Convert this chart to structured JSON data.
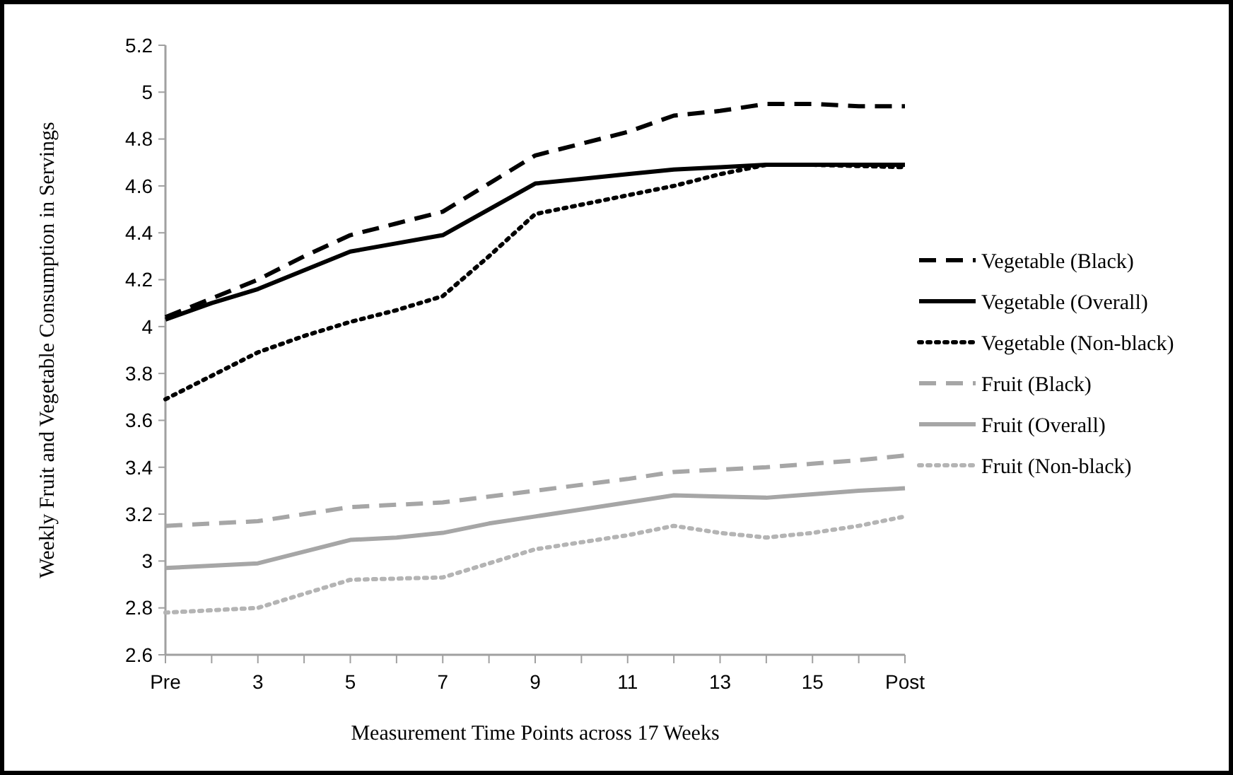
{
  "chart_data": {
    "type": "line",
    "xlabel": "Measurement Time Points across 17 Weeks",
    "ylabel": "Weekly Fruit and Vegetable Consumption in Servings",
    "categories": [
      "Pre",
      null,
      "3",
      null,
      "5",
      null,
      "7",
      null,
      "9",
      null,
      "11",
      null,
      "13",
      null,
      "15",
      null,
      "Post"
    ],
    "ylim": [
      2.6,
      5.2
    ],
    "yticks": [
      {
        "value": 2.6,
        "label": "2.6"
      },
      {
        "value": 2.8,
        "label": "2.8"
      },
      {
        "value": 3,
        "label": "3"
      },
      {
        "value": 3.2,
        "label": "3.2"
      },
      {
        "value": 3.4,
        "label": "3.4"
      },
      {
        "value": 3.6,
        "label": "3.6"
      },
      {
        "value": 3.8,
        "label": "3.8"
      },
      {
        "value": 4,
        "label": "4"
      },
      {
        "value": 4.2,
        "label": "4.2"
      },
      {
        "value": 4.4,
        "label": "4.4"
      },
      {
        "value": 4.6,
        "label": "4.6"
      },
      {
        "value": 4.8,
        "label": "4.8"
      },
      {
        "value": 5,
        "label": "5"
      },
      {
        "value": 5.2,
        "label": "5.2"
      }
    ],
    "grid": false,
    "legend": "right",
    "marker": "none",
    "series": [
      {
        "name": "Vegetable (Black)",
        "color": "#000000",
        "line_style": "dashed",
        "values": [
          4.04,
          4.12,
          4.2,
          4.3,
          4.39,
          4.44,
          4.49,
          4.61,
          4.73,
          4.78,
          4.83,
          4.9,
          4.92,
          4.95,
          4.95,
          4.94,
          4.94
        ]
      },
      {
        "name": "Vegetable (Overall)",
        "color": "#000000",
        "line_style": "solid",
        "values": [
          4.03,
          4.1,
          4.16,
          4.24,
          4.32,
          4.355,
          4.39,
          4.5,
          4.61,
          4.63,
          4.65,
          4.67,
          4.68,
          4.69,
          4.69,
          4.69,
          4.69
        ]
      },
      {
        "name": "Vegetable (Non-black)",
        "color": "#000000",
        "line_style": "dotted",
        "values": [
          3.69,
          3.79,
          3.89,
          3.96,
          4.02,
          4.07,
          4.13,
          4.3,
          4.48,
          4.52,
          4.56,
          4.6,
          4.65,
          4.69,
          4.69,
          4.685,
          4.68
        ]
      },
      {
        "name": "Fruit (Black)",
        "color": "#a6a6a6",
        "line_style": "dashed",
        "values": [
          3.15,
          3.16,
          3.17,
          3.2,
          3.23,
          3.24,
          3.25,
          3.275,
          3.3,
          3.325,
          3.35,
          3.38,
          3.39,
          3.4,
          3.415,
          3.43,
          3.45
        ]
      },
      {
        "name": "Fruit (Overall)",
        "color": "#a6a6a6",
        "line_style": "solid",
        "values": [
          2.97,
          2.98,
          2.99,
          3.04,
          3.09,
          3.1,
          3.12,
          3.16,
          3.19,
          3.22,
          3.25,
          3.28,
          3.275,
          3.27,
          3.285,
          3.3,
          3.31
        ]
      },
      {
        "name": "Fruit (Non-black)",
        "color": "#b4b4b4",
        "line_style": "dotted",
        "values": [
          2.78,
          2.79,
          2.8,
          2.86,
          2.92,
          2.925,
          2.93,
          2.99,
          3.05,
          3.08,
          3.11,
          3.15,
          3.12,
          3.1,
          3.12,
          3.15,
          3.19
        ]
      }
    ]
  }
}
